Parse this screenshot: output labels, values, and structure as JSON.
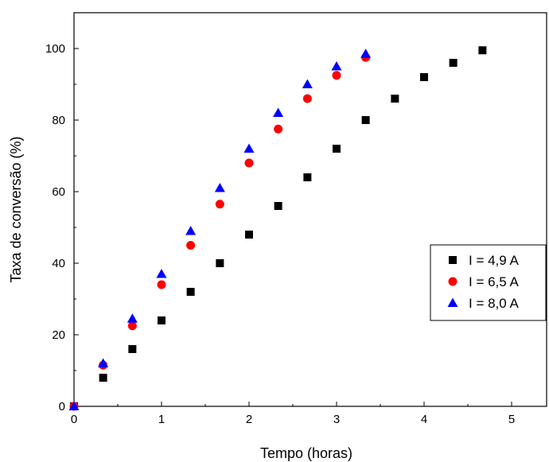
{
  "chart_data": {
    "type": "scatter",
    "xlabel": "Tempo (horas)",
    "ylabel": "Taxa de conversão (%)",
    "xlim": [
      0,
      5.4
    ],
    "ylim": [
      0,
      110
    ],
    "xticks": [
      0,
      1,
      2,
      3,
      4,
      5
    ],
    "yticks": [
      0,
      20,
      40,
      60,
      80,
      100
    ],
    "grid": false,
    "legend_position": "right",
    "series": [
      {
        "name": "I = 4,9 A",
        "marker": "square",
        "color": "#000000",
        "x": [
          0,
          0.333,
          0.667,
          1.0,
          1.333,
          1.667,
          2.0,
          2.333,
          2.667,
          3.0,
          3.333,
          3.667,
          4.0,
          4.333,
          4.667
        ],
        "y": [
          0,
          8,
          16,
          24,
          32,
          40,
          48,
          56,
          64,
          72,
          80,
          86,
          92,
          96,
          99.5
        ]
      },
      {
        "name": "I = 6,5 A",
        "marker": "circle",
        "color": "#ff0000",
        "x": [
          0,
          0.333,
          0.667,
          1.0,
          1.333,
          1.667,
          2.0,
          2.333,
          2.667,
          3.0,
          3.333
        ],
        "y": [
          0,
          11.5,
          22.5,
          34,
          45,
          56.5,
          68,
          77.5,
          86,
          92.5,
          97.5
        ]
      },
      {
        "name": "I = 8,0 A",
        "marker": "triangle",
        "color": "#0000ff",
        "x": [
          0,
          0.333,
          0.667,
          1.0,
          1.333,
          1.667,
          2.0,
          2.333,
          2.667,
          3.0,
          3.333
        ],
        "y": [
          0,
          12,
          24.5,
          37,
          49,
          61,
          72,
          82,
          90,
          95,
          98.5
        ]
      }
    ]
  }
}
